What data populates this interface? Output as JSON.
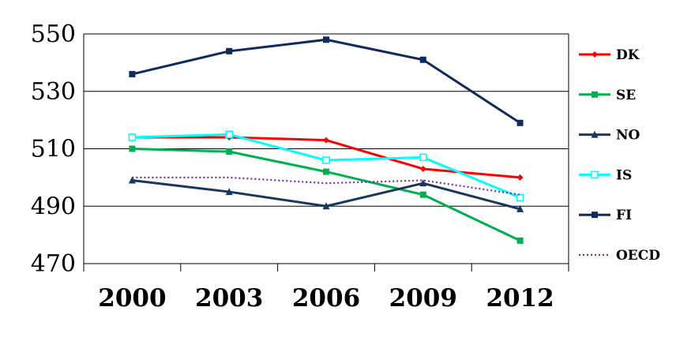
{
  "chart_data": {
    "type": "line",
    "title": "",
    "xlabel": "",
    "ylabel": "",
    "categories": [
      "2000",
      "2003",
      "2006",
      "2009",
      "2012"
    ],
    "ylim": [
      470,
      550
    ],
    "yticks": [
      470,
      490,
      510,
      530,
      550
    ],
    "grid": "horizontal",
    "legend_position": "right",
    "series": [
      {
        "name": "DK",
        "values": [
          514,
          514,
          513,
          503,
          500
        ],
        "color": "#ff0000",
        "marker": "diamond",
        "style": "solid"
      },
      {
        "name": "SE",
        "values": [
          510,
          509,
          502,
          494,
          478
        ],
        "color": "#00b050",
        "marker": "square",
        "style": "solid"
      },
      {
        "name": "NO",
        "values": [
          499,
          495,
          490,
          498,
          489
        ],
        "color": "#17375e",
        "marker": "triangle",
        "style": "solid"
      },
      {
        "name": "IS",
        "values": [
          514,
          515,
          506,
          507,
          493
        ],
        "color": "#00ffff",
        "marker": "square-open",
        "style": "solid"
      },
      {
        "name": "FI",
        "values": [
          536,
          544,
          548,
          541,
          519
        ],
        "color": "#0f2a5f",
        "marker": "square",
        "style": "solid"
      },
      {
        "name": "OECD",
        "values": [
          500,
          500,
          498,
          499,
          494
        ],
        "color": "#7030a0",
        "marker": "none",
        "style": "dotted"
      }
    ]
  }
}
